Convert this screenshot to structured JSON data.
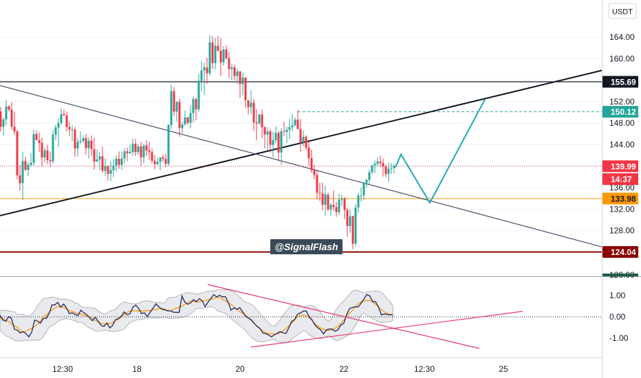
{
  "chart_data": {
    "type": "candlestick",
    "currency": "USDT",
    "watermark": "@SignalFlash",
    "price_axis": {
      "ylim": [
        120,
        166.5
      ],
      "ticks": [
        "164.00",
        "160.00",
        "156.00",
        "152.00",
        "148.00",
        "144.00",
        "140.00",
        "136.00",
        "132.00",
        "128.00",
        "124.00",
        "120.00"
      ]
    },
    "time_axis": {
      "labels": [
        "12:30",
        "18",
        "20",
        "22",
        "12:30",
        "25"
      ]
    },
    "price_tags": [
      {
        "label": "155.69",
        "value": 155.69,
        "bg": "#131722",
        "fg": "#ffffff"
      },
      {
        "label": "150.12",
        "value": 150.12,
        "bg": "#26a69a",
        "fg": "#ffffff"
      },
      {
        "label": "139.99",
        "value": 139.99,
        "bg": "#f23645",
        "fg": "#ffffff"
      },
      {
        "label": "14:37",
        "value": 137.6,
        "bg": "#f23645",
        "fg": "#ffffff"
      },
      {
        "label": "133.98",
        "value": 133.98,
        "bg": "#ff9800",
        "fg": "#131722"
      },
      {
        "label": "124.04",
        "value": 124.04,
        "bg": "#8b0000",
        "fg": "#ffffff"
      }
    ],
    "horizontal_levels": [
      {
        "value": 155.69,
        "color": "#131722",
        "style": "solid"
      },
      {
        "value": 150.12,
        "color": "#26a69a",
        "style": "dashed"
      },
      {
        "value": 139.99,
        "color": "#f23645",
        "style": "dotted"
      },
      {
        "value": 133.98,
        "color": "#ff9800",
        "style": "solid"
      },
      {
        "value": 124.04,
        "color": "#8b0000",
        "style": "solid"
      }
    ],
    "trendlines": [
      {
        "name": "support",
        "from": [
          0,
          130.8
        ],
        "to": [
          875,
          157.8
        ],
        "color": "#131722"
      },
      {
        "name": "resistance",
        "from": [
          0,
          155.0
        ],
        "to": [
          875,
          125.0
        ],
        "color": "#4a4a6a"
      }
    ],
    "projection_path": [
      [
        575,
        139.8
      ],
      [
        583,
        142.2
      ],
      [
        625,
        133.2
      ],
      [
        705,
        152.4
      ]
    ],
    "candles": [
      [
        1,
        150.15,
        150.97,
        146.44,
        147.32
      ],
      [
        5,
        147.32,
        149.11,
        145.73,
        148.68
      ],
      [
        9,
        148.68,
        152.23,
        147.59,
        151.12
      ],
      [
        13,
        151.12,
        151.37,
        150.16,
        150.52
      ],
      [
        17,
        150.52,
        151.91,
        146.71,
        147.34
      ],
      [
        21,
        147.34,
        150.13,
        145.78,
        146.46
      ],
      [
        25,
        146.46,
        146.77,
        137.6,
        138.3
      ],
      [
        29,
        138.3,
        140.18,
        135.49,
        136.84
      ],
      [
        33,
        136.84,
        142.71,
        133.71,
        140.94
      ],
      [
        37,
        140.94,
        141.8,
        139.11,
        139.32
      ],
      [
        41,
        139.32,
        140.7,
        138.19,
        140.23
      ],
      [
        45,
        140.23,
        142.46,
        139.89,
        140.66
      ],
      [
        49,
        140.66,
        146.82,
        140.08,
        145.97
      ],
      [
        53,
        145.97,
        146.57,
        144.85,
        144.85
      ],
      [
        57,
        144.85,
        146.29,
        142.63,
        144.35
      ],
      [
        61,
        144.35,
        145.31,
        139.86,
        141.64
      ],
      [
        65,
        141.64,
        143.48,
        140.68,
        142.94
      ],
      [
        69,
        142.94,
        143.96,
        140.34,
        141.13
      ],
      [
        73,
        141.13,
        142.71,
        139.92,
        140.91
      ],
      [
        77,
        140.91,
        146.74,
        140.41,
        145.86
      ],
      [
        81,
        145.86,
        147.71,
        144.8,
        147.18
      ],
      [
        85,
        147.18,
        148.89,
        143.53,
        148.03
      ],
      [
        89,
        148.03,
        150.8,
        147.67,
        149.69
      ],
      [
        93,
        149.69,
        150.56,
        149.44,
        149.44
      ],
      [
        97,
        149.44,
        150.16,
        146.49,
        147.27
      ],
      [
        101,
        147.27,
        148.21,
        145.56,
        146.82
      ],
      [
        105,
        146.82,
        147.61,
        144.66,
        146.82
      ],
      [
        109,
        146.82,
        147.33,
        141.7,
        143.29
      ],
      [
        113,
        143.29,
        145.25,
        141.83,
        144.52
      ],
      [
        117,
        144.52,
        146.47,
        144.09,
        144.7
      ],
      [
        121,
        144.7,
        145.78,
        144.29,
        145.23
      ],
      [
        125,
        145.23,
        145.99,
        142.08,
        143.36
      ],
      [
        129,
        143.36,
        145.32,
        141.43,
        144.75
      ],
      [
        133,
        144.75,
        145.73,
        141.96,
        143.18
      ],
      [
        137,
        143.18,
        145.3,
        139.34,
        140.86
      ],
      [
        141,
        140.86,
        143.11,
        140.76,
        141.26
      ],
      [
        145,
        141.26,
        142.62,
        139.27,
        141.81
      ],
      [
        149,
        141.81,
        143.64,
        138.74,
        139.15
      ],
      [
        153,
        139.15,
        141.49,
        138.27,
        140.05
      ],
      [
        157,
        140.05,
        140.14,
        137.28,
        138.58
      ],
      [
        161,
        138.58,
        140.87,
        137.21,
        139.28
      ],
      [
        165,
        139.28,
        141.32,
        137.94,
        140.1
      ],
      [
        169,
        140.1,
        142.04,
        138.99,
        141.39
      ],
      [
        173,
        141.39,
        142.76,
        139.5,
        140.24
      ],
      [
        177,
        140.24,
        142.76,
        139.31,
        141.42
      ],
      [
        181,
        141.42,
        143.27,
        140.56,
        142.75
      ],
      [
        185,
        142.75,
        143.43,
        140.95,
        142.4
      ],
      [
        189,
        142.4,
        143.95,
        142.31,
        142.64
      ],
      [
        193,
        142.64,
        145.11,
        141.96,
        144.16
      ],
      [
        197,
        144.16,
        145.11,
        141.91,
        142.6
      ],
      [
        201,
        142.6,
        144.05,
        142.11,
        143.67
      ],
      [
        205,
        143.67,
        144.56,
        140.08,
        141.65
      ],
      [
        209,
        141.65,
        144.13,
        140.54,
        143.83
      ],
      [
        213,
        143.83,
        144.79,
        141.89,
        142.93
      ],
      [
        217,
        142.93,
        144.56,
        141.13,
        142.62
      ],
      [
        221,
        142.62,
        143.35,
        140.47,
        141.01
      ],
      [
        225,
        141.01,
        142.06,
        139.37,
        140.36
      ],
      [
        229,
        140.36,
        141.58,
        140.19,
        140.8
      ],
      [
        233,
        140.8,
        141.67,
        139.24,
        141.62
      ],
      [
        237,
        141.62,
        142.15,
        140.78,
        141.34
      ],
      [
        241,
        141.34,
        142.33,
        139.83,
        140.43
      ],
      [
        245,
        140.43,
        147.82,
        140.03,
        147.65
      ],
      [
        249,
        147.65,
        155.16,
        146.85,
        153.97
      ],
      [
        253,
        153.97,
        154.72,
        149.34,
        150.14
      ],
      [
        257,
        150.14,
        152.15,
        148.25,
        151.95
      ],
      [
        261,
        151.95,
        152.53,
        145.49,
        147.09
      ],
      [
        265,
        147.09,
        148.32,
        146.21,
        147.76
      ],
      [
        269,
        147.76,
        150.34,
        147.53,
        149.06
      ],
      [
        273,
        149.06,
        149.18,
        147.66,
        148.05
      ],
      [
        277,
        148.05,
        151.24,
        147.02,
        149.87
      ],
      [
        281,
        149.87,
        152.94,
        148.12,
        152.45
      ],
      [
        285,
        152.45,
        152.82,
        148.54,
        150.57
      ],
      [
        289,
        150.57,
        157.14,
        150.15,
        155.87
      ],
      [
        293,
        155.87,
        159.6,
        153.95,
        157.81
      ],
      [
        297,
        157.81,
        159.22,
        153.18,
        158.36
      ],
      [
        301,
        158.36,
        160.17,
        155.27,
        157.27
      ],
      [
        305,
        157.27,
        164.33,
        156.86,
        163.01
      ],
      [
        309,
        163.01,
        164.2,
        158.13,
        159.18
      ],
      [
        313,
        159.18,
        163.81,
        158.03,
        162.39
      ],
      [
        317,
        162.39,
        164.22,
        161.35,
        161.48
      ],
      [
        321,
        161.48,
        163.86,
        156.71,
        159.3
      ],
      [
        325,
        159.3,
        162.29,
        158.69,
        161.69
      ],
      [
        329,
        161.69,
        162.45,
        159.88,
        160.06
      ],
      [
        333,
        160.06,
        161.23,
        156.35,
        158.05
      ],
      [
        337,
        158.05,
        159.08,
        155.98,
        158.38
      ],
      [
        341,
        158.38,
        158.91,
        155.93,
        156.75
      ],
      [
        345,
        156.75,
        158.12,
        155.26,
        157.62
      ],
      [
        349,
        157.62,
        157.71,
        152.68,
        155.27
      ],
      [
        353,
        155.27,
        157.32,
        153.19,
        156.48
      ],
      [
        357,
        156.48,
        156.53,
        150.84,
        152.25
      ],
      [
        361,
        152.25,
        152.31,
        149.63,
        151.0
      ],
      [
        365,
        151.0,
        154.16,
        149.68,
        151.81
      ],
      [
        369,
        151.81,
        152.54,
        146.64,
        148.12
      ],
      [
        373,
        148.12,
        150.59,
        144.88,
        147.93
      ],
      [
        377,
        147.93,
        149.68,
        147.68,
        149.63
      ],
      [
        381,
        149.63,
        150.54,
        145.23,
        147.22
      ],
      [
        385,
        147.22,
        147.39,
        143.32,
        145.9
      ],
      [
        389,
        145.9,
        147.26,
        142.95,
        146.48
      ],
      [
        393,
        146.48,
        146.96,
        142.5,
        143.98
      ],
      [
        397,
        143.98,
        146.41,
        141.7,
        144.83
      ],
      [
        401,
        144.83,
        147.4,
        144.3,
        146.18
      ],
      [
        405,
        146.18,
        146.53,
        140.87,
        142.53
      ],
      [
        409,
        142.53,
        147.05,
        140.28,
        146.5
      ],
      [
        413,
        146.5,
        148.28,
        145.58,
        146.38
      ],
      [
        417,
        146.38,
        147.38,
        144.31,
        146.79
      ],
      [
        421,
        146.79,
        148.81,
        145.01,
        147.26
      ],
      [
        425,
        147.26,
        149.72,
        146.4,
        147.62
      ],
      [
        429,
        147.62,
        149.04,
        147.4,
        148.64
      ],
      [
        433,
        148.64,
        150.48,
        146.86,
        146.9
      ],
      [
        437,
        146.9,
        148.79,
        142.66,
        144.46
      ],
      [
        441,
        144.46,
        146.62,
        143.73,
        145.46
      ],
      [
        445,
        145.46,
        145.77,
        142.91,
        143.47
      ],
      [
        449,
        143.47,
        144.58,
        140.08,
        141.51
      ],
      [
        453,
        141.51,
        143.1,
        138.73,
        139.25
      ],
      [
        457,
        139.25,
        140.28,
        137.59,
        138.37
      ],
      [
        461,
        138.37,
        139.14,
        133.79,
        135.07
      ],
      [
        465,
        135.07,
        136.93,
        133.56,
        134.92
      ],
      [
        469,
        134.92,
        136.94,
        131.78,
        132.81
      ],
      [
        473,
        132.81,
        136.36,
        130.74,
        134.7
      ],
      [
        477,
        134.7,
        135.05,
        131.62,
        131.95
      ],
      [
        481,
        131.95,
        133.16,
        130.79,
        132.82
      ],
      [
        485,
        132.82,
        135.47,
        131.66,
        132.4
      ],
      [
        489,
        132.4,
        133.37,
        130.56,
        131.45
      ],
      [
        493,
        131.45,
        134.85,
        130.96,
        133.79
      ],
      [
        497,
        133.79,
        134.64,
        132.6,
        133.96
      ],
      [
        501,
        133.96,
        134.27,
        130.18,
        131.86
      ],
      [
        505,
        131.86,
        132.3,
        126.88,
        128.88
      ],
      [
        509,
        128.88,
        132.01,
        127.63,
        130.71
      ],
      [
        513,
        130.71,
        130.78,
        124.56,
        125.57
      ],
      [
        517,
        125.57,
        132.97,
        125.09,
        132.32
      ],
      [
        521,
        132.32,
        135.0,
        131.31,
        134.56
      ],
      [
        525,
        134.56,
        136.06,
        133.42,
        134.56
      ],
      [
        529,
        134.56,
        137.01,
        133.68,
        136.88
      ],
      [
        533,
        136.88,
        137.69,
        135.99,
        137.44
      ],
      [
        537,
        137.44,
        139.43,
        136.7,
        138.88
      ],
      [
        541,
        138.88,
        140.23,
        138.45,
        140.16
      ],
      [
        545,
        140.16,
        141.07,
        138.71,
        140.46
      ],
      [
        549,
        140.46,
        141.6,
        139.87,
        140.88
      ],
      [
        553,
        140.88,
        141.99,
        139.8,
        140.58
      ],
      [
        557,
        140.58,
        141.46,
        138.02,
        139.95
      ],
      [
        561,
        139.95,
        140.33,
        137.98,
        138.55
      ],
      [
        565,
        138.55,
        140.71,
        137.03,
        139.54
      ],
      [
        569,
        139.54,
        140.59,
        138.54,
        139.65
      ],
      [
        573,
        139.65,
        140.48,
        138.64,
        139.99
      ]
    ],
    "oscillator": {
      "ylim": [
        -1.75,
        1.75
      ],
      "ticks": [
        "1.00",
        "0.00",
        "-1.00"
      ],
      "values": [
        0.07,
        -0.15,
        -0.21,
        0.01,
        -0.08,
        -0.58,
        -0.63,
        -0.76,
        -0.69,
        -0.79,
        -0.94,
        -0.71,
        -0.15,
        -0.2,
        -0.3,
        -0.08,
        -0.07,
        0.15,
        0.56,
        0.56,
        0.68,
        0.45,
        0.6,
        0.42,
        0.15,
        0.19,
        0.11,
        0.06,
        0.31,
        0.19,
        0.1,
        -0.05,
        -0.18,
        -0.02,
        -0.21,
        -0.4,
        -0.45,
        -0.29,
        -0.52,
        -0.4,
        -0.13,
        -0.08,
        0.03,
        0.23,
        0.1,
        0.14,
        0.45,
        0.55,
        0.39,
        0.15,
        0.19,
        0.01,
        0.22,
        0.42,
        0.61,
        0.47,
        0.36,
        0.33,
        0.28,
        0.28,
        0.22,
        0.21,
        0.21,
        0.97,
        0.69,
        0.59,
        0.65,
        0.81,
        0.71,
        0.85,
        0.76,
        0.48,
        0.69,
        0.86,
        1.04,
        0.93,
        1.01,
        0.94,
        0.95,
        0.68,
        0.31,
        0.42,
        0.35,
        0.43,
        0.23,
        0.03,
        -0.06,
        -0.14,
        -0.3,
        -0.45,
        -0.54,
        -0.76,
        -0.79,
        -0.85,
        -0.94,
        -0.84,
        -0.77,
        -0.69,
        -0.75,
        -0.78,
        -0.51,
        -0.21,
        -0.13,
        0.12,
        0.19,
        0.26,
        0.28,
        0.0,
        -0.14,
        -0.38,
        -0.51,
        -0.61,
        -0.8,
        -0.61,
        -0.57,
        -0.58,
        -0.68,
        -0.61,
        -0.38,
        -0.31,
        0.11,
        0.38,
        0.44,
        0.47,
        0.46,
        0.64,
        0.84,
        1.05,
        0.98,
        0.72,
        0.71,
        0.47,
        0.09,
        0.14,
        0.11,
        0.1,
        0.1
      ]
    }
  }
}
